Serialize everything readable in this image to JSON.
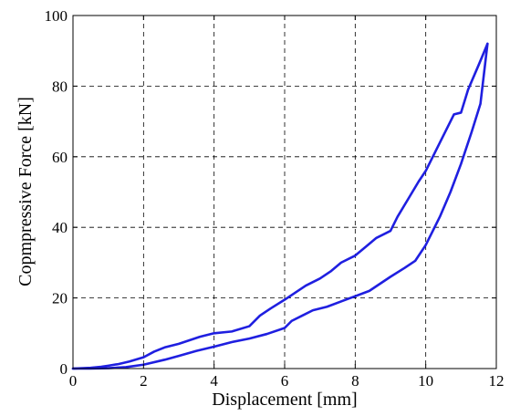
{
  "chart_data": {
    "type": "line",
    "title": "",
    "xlabel": "Displacement [mm]",
    "ylabel": "Copmpressive Force [kN]",
    "xlim": [
      0,
      12
    ],
    "ylim": [
      0,
      100
    ],
    "xticks": [
      0,
      2,
      4,
      6,
      8,
      10,
      12
    ],
    "yticks": [
      0,
      20,
      40,
      60,
      80,
      100
    ],
    "grid": true,
    "line_color": "#1f1fe0",
    "series": [
      {
        "x": [
          0,
          0.5,
          0.8,
          1.0,
          1.3,
          1.6,
          2.0,
          2.3,
          2.6,
          3.0,
          3.3,
          3.6,
          4.0,
          4.5,
          5.0,
          5.3,
          5.6,
          6.0,
          6.3,
          6.6,
          7.0,
          7.3,
          7.6,
          8.0,
          8.3,
          8.6,
          9.0,
          9.2,
          9.5,
          9.8,
          10.0,
          10.3,
          10.5,
          10.8,
          11.0,
          11.2,
          11.5,
          11.75
        ],
        "y": [
          0,
          0.2,
          0.5,
          0.8,
          1.3,
          2.0,
          3.2,
          4.8,
          6.0,
          7.0,
          8.0,
          9.0,
          10.0,
          10.5,
          12.0,
          15.0,
          17.0,
          19.5,
          21.5,
          23.5,
          25.5,
          27.5,
          30.0,
          32.0,
          34.5,
          37.0,
          39.0,
          43.0,
          48.0,
          53.0,
          56.0,
          62.0,
          66.0,
          72.0,
          72.5,
          79.0,
          86.0,
          92.0
        ]
      },
      {
        "x": [
          11.75,
          11.55,
          11.3,
          11.0,
          10.7,
          10.4,
          10.0,
          9.7,
          9.4,
          9.0,
          8.7,
          8.4,
          8.0,
          7.6,
          7.2,
          6.8,
          6.5,
          6.2,
          6.0,
          5.5,
          5.0,
          4.5,
          4.0,
          3.5,
          3.0,
          2.6,
          2.0,
          1.5,
          1.0,
          0.5,
          0
        ],
        "y": [
          92.0,
          75.0,
          67.0,
          58.0,
          50.0,
          43.0,
          35.0,
          30.5,
          28.5,
          26.0,
          24.0,
          22.0,
          20.5,
          19.0,
          17.5,
          16.5,
          15.0,
          13.5,
          11.5,
          9.8,
          8.5,
          7.5,
          6.2,
          5.0,
          3.6,
          2.5,
          1.1,
          0.4,
          0.1,
          0,
          0
        ]
      }
    ]
  }
}
